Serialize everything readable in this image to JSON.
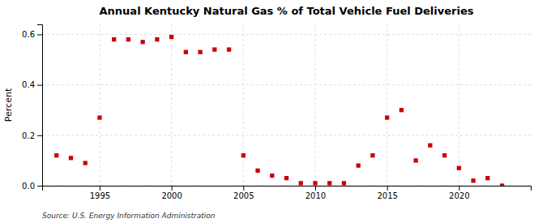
{
  "chart_data": {
    "type": "scatter",
    "title": "Annual Kentucky Natural Gas % of Total Vehicle Fuel Deliveries",
    "ylabel": "Percent",
    "annotation": "Source: U.S. Energy Information Administration",
    "color": "#cc0000",
    "marker": "square",
    "grid": true,
    "xlim": [
      1991.0,
      2025.0
    ],
    "xticks": [
      1995,
      2000,
      2005,
      2010,
      2015,
      2020
    ],
    "ylim": [
      0.0,
      0.64
    ],
    "yticks": [
      {
        "value": 0.0,
        "label": "0.0"
      },
      0.2,
      0.4,
      0.6
    ],
    "x": [
      1992,
      1993,
      1994,
      1995,
      1996,
      1997,
      1998,
      1999,
      2000,
      2001,
      2002,
      2003,
      2004,
      2005,
      2006,
      2007,
      2008,
      2009,
      2010,
      2011,
      2012,
      2013,
      2014,
      2015,
      2016,
      2017,
      2018,
      2019,
      2020,
      2021,
      2022,
      2023
    ],
    "values": [
      0.12,
      0.11,
      0.09,
      0.27,
      0.58,
      0.58,
      0.57,
      0.58,
      0.59,
      0.53,
      0.53,
      0.54,
      0.54,
      0.12,
      0.06,
      0.04,
      0.03,
      0.01,
      0.01,
      0.01,
      0.01,
      0.08,
      0.12,
      0.27,
      0.3,
      0.1,
      0.16,
      0.12,
      0.07,
      0.02,
      0.03,
      0.0
    ]
  }
}
